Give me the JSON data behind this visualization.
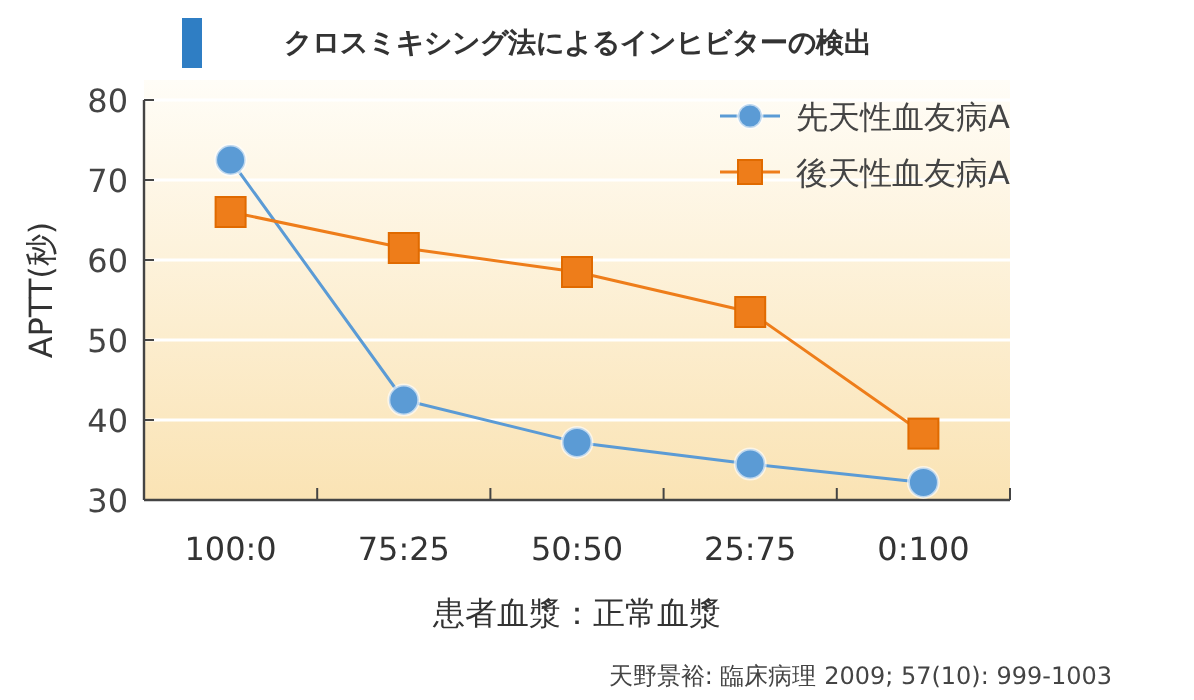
{
  "chart_data": {
    "type": "line",
    "title": "クロスミキシング法によるインヒビターの検出",
    "xlabel": "患者血漿：正常血漿",
    "ylabel": "APTT(秒)",
    "categories": [
      "100:0",
      "75:25",
      "50:50",
      "25:75",
      "0:100"
    ],
    "series": [
      {
        "name": "先天性血友病A",
        "color": "#5b9bd5",
        "marker": "circle",
        "values": [
          72.5,
          42.5,
          37.2,
          34.5,
          32.2
        ]
      },
      {
        "name": "後天性血友病A",
        "color": "#ee7d1a",
        "marker": "square",
        "values": [
          66,
          61.5,
          58.5,
          53.5,
          38.3
        ]
      }
    ],
    "ylim": [
      30,
      80
    ],
    "yticks": [
      30,
      40,
      50,
      60,
      70,
      80
    ],
    "grid": "y",
    "legend": "top right",
    "line_style": "solid",
    "annotations": [
      "天野景裕: 臨床病理 2009; 57(10): 999-1003"
    ]
  }
}
